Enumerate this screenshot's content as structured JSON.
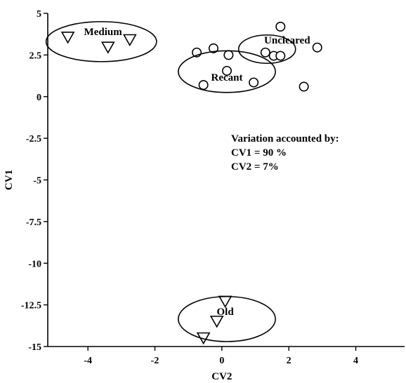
{
  "chart_data": {
    "type": "scatter",
    "xlabel": "CV2",
    "ylabel": "CV1",
    "xlim": [
      -5.2,
      5.5
    ],
    "ylim": [
      -15,
      5
    ],
    "x_ticks": [
      -4,
      -2,
      0,
      2,
      4
    ],
    "y_ticks": [
      5,
      2.5,
      0,
      -2.5,
      -5,
      -7.5,
      -10,
      -12.5,
      -15
    ],
    "x_tick_labels": [
      "-4",
      "-2",
      "0",
      "2",
      "4"
    ],
    "y_tick_labels": [
      "5",
      "2.5",
      "0",
      "-2.5",
      "-5",
      "-7.5",
      "-10",
      "-12.5",
      "-15"
    ],
    "grid": false,
    "series": [
      {
        "marker": "circle",
        "points": [
          {
            "x": 1.75,
            "y": 4.2
          },
          {
            "x": 2.85,
            "y": 2.95
          },
          {
            "x": 1.3,
            "y": 2.65
          },
          {
            "x": 1.55,
            "y": 2.45
          },
          {
            "x": 1.75,
            "y": 2.45
          },
          {
            "x": -0.75,
            "y": 2.65
          },
          {
            "x": -0.25,
            "y": 2.9
          },
          {
            "x": 0.2,
            "y": 2.5
          },
          {
            "x": 0.15,
            "y": 1.55
          },
          {
            "x": -0.55,
            "y": 0.7
          },
          {
            "x": 0.95,
            "y": 0.85
          },
          {
            "x": 2.45,
            "y": 0.6
          }
        ]
      },
      {
        "marker": "triangle-down",
        "points": [
          {
            "x": -4.6,
            "y": 3.55
          },
          {
            "x": -3.4,
            "y": 2.95
          },
          {
            "x": -2.75,
            "y": 3.4
          },
          {
            "x": 0.1,
            "y": -12.3
          },
          {
            "x": -0.15,
            "y": -13.5
          },
          {
            "x": -0.55,
            "y": -14.5
          }
        ]
      }
    ],
    "groups": [
      {
        "label": "Medium",
        "center": {
          "x": -3.6,
          "y": 3.3
        },
        "radius": {
          "x": 1.65,
          "y": 1.2
        },
        "label_at": {
          "x": -3.55,
          "y": 3.7
        }
      },
      {
        "label": "Uncleared",
        "center": {
          "x": 1.35,
          "y": 2.85
        },
        "radius": {
          "x": 0.85,
          "y": 0.85
        },
        "label_at": {
          "x": 1.95,
          "y": 3.2
        }
      },
      {
        "label": "Recant",
        "center": {
          "x": 0.15,
          "y": 1.5
        },
        "radius": {
          "x": 1.45,
          "y": 1.25
        },
        "label_at": {
          "x": 0.15,
          "y": 0.95
        }
      },
      {
        "label": "Old",
        "center": {
          "x": 0.15,
          "y": -13.35
        },
        "radius": {
          "x": 1.45,
          "y": 1.35
        },
        "label_at": {
          "x": 0.1,
          "y": -13.1
        }
      }
    ],
    "annotations": [
      "Variation accounted by:",
      "CV1 = 90 %",
      "CV2 = 7%"
    ]
  }
}
